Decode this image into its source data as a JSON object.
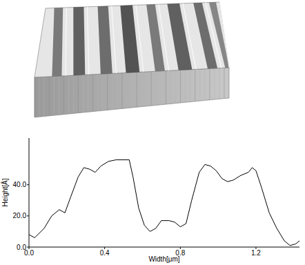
{
  "chart_data": {
    "type": "line",
    "x_label": "Width[μm]",
    "y_label": "Height[Å]",
    "x": [
      0.0,
      0.03,
      0.08,
      0.12,
      0.16,
      0.19,
      0.22,
      0.26,
      0.29,
      0.32,
      0.35,
      0.38,
      0.42,
      0.46,
      0.5,
      0.53,
      0.55,
      0.58,
      0.61,
      0.64,
      0.67,
      0.7,
      0.74,
      0.77,
      0.8,
      0.83,
      0.86,
      0.9,
      0.93,
      0.96,
      0.99,
      1.02,
      1.05,
      1.08,
      1.12,
      1.16,
      1.18,
      1.2,
      1.23,
      1.27,
      1.31,
      1.35,
      1.38,
      1.41,
      1.43
    ],
    "values": [
      8,
      6,
      12,
      20,
      24,
      22,
      32,
      45,
      51,
      50,
      48,
      52,
      55,
      56,
      56,
      56,
      45,
      25,
      14,
      10,
      12,
      17,
      17,
      16,
      13,
      15,
      30,
      48,
      53,
      52,
      49,
      44,
      42,
      43,
      46,
      48,
      51,
      49,
      38,
      22,
      12,
      4,
      1,
      2,
      4
    ],
    "color": "#000000",
    "xlim": [
      0,
      1.43
    ],
    "ylim": [
      0,
      70
    ],
    "xticks": [
      {
        "value": 0,
        "label": "0.0"
      },
      {
        "value": 0.4,
        "label": "0.4"
      },
      {
        "value": 0.8,
        "label": "0.8"
      },
      {
        "value": 1.2,
        "label": "1.2"
      }
    ],
    "yticks": [
      {
        "value": 0,
        "label": "0.0"
      },
      {
        "value": 20,
        "label": "20.0"
      },
      {
        "value": 40,
        "label": "40.0"
      }
    ],
    "grid": false
  }
}
